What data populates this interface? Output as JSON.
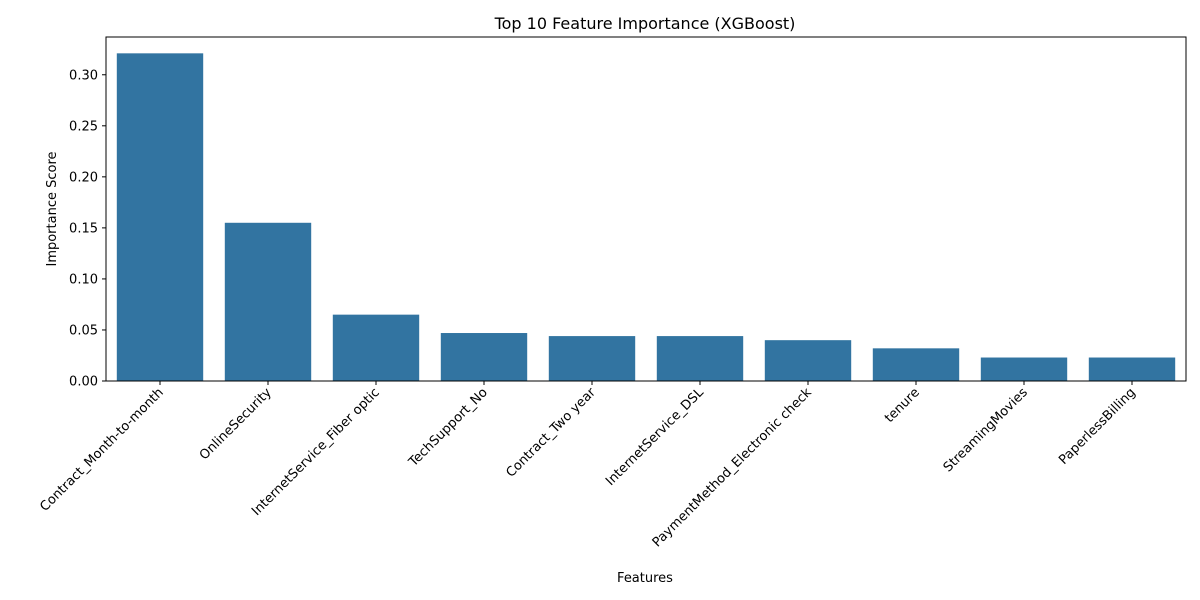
{
  "chart_data": {
    "type": "bar",
    "title": "Top 10 Feature Importance (XGBoost)",
    "xlabel": "Features",
    "ylabel": "Importance Score",
    "categories": [
      "Contract_Month-to-month",
      "OnlineSecurity",
      "InternetService_Fiber optic",
      "TechSupport_No",
      "Contract_Two year",
      "InternetService_DSL",
      "PaymentMethod_Electronic check",
      "tenure",
      "StreamingMovies",
      "PaperlessBilling"
    ],
    "values": [
      0.321,
      0.155,
      0.065,
      0.047,
      0.044,
      0.044,
      0.04,
      0.032,
      0.023,
      0.023
    ],
    "ylim": [
      0,
      0.337
    ],
    "yticks": [
      0.0,
      0.05,
      0.1,
      0.15,
      0.2,
      0.25,
      0.3
    ],
    "ytick_labels": [
      "0.00",
      "0.05",
      "0.10",
      "0.15",
      "0.20",
      "0.25",
      "0.30"
    ],
    "grid": false,
    "legend": "none",
    "bar_color": "#3274a1"
  }
}
